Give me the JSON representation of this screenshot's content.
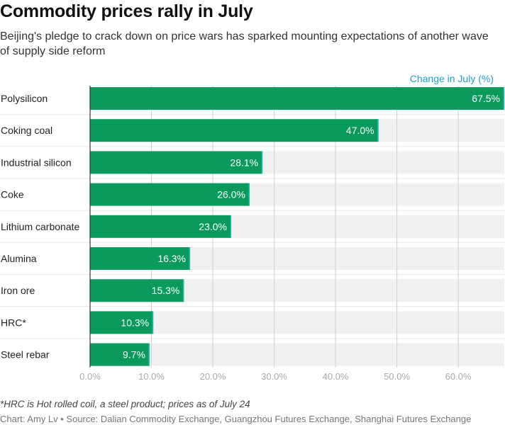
{
  "title": "Commodity prices rally in July",
  "subtitle": "Beijing's pledge to crack down on price wars has sparked mounting expectations of another wave of supply side reform",
  "footnote": "*HRC is Hot rolled coil, a steel product; prices as of July 24",
  "source": "Chart: Amy Lv • Source: Dalian Commodity Exchange, Guangzhou Futures Exchange, Shanghai Futures Exchange",
  "colors": {
    "bar": "#0a9a5c",
    "bar_edge": "#13c3b0",
    "track": "#f0f0f0",
    "grid": "#cfcfcf",
    "legend": "#1ba3c6",
    "tick": "#aaaaaa"
  },
  "chart_data": {
    "type": "bar",
    "orientation": "horizontal",
    "legend": [
      "Change in July (%)"
    ],
    "categories": [
      "Polysilicon",
      "Coking coal",
      "Industrial silicon",
      "Coke",
      "Lithium carbonate",
      "Alumina",
      "Iron ore",
      "HRC*",
      "Steel rebar"
    ],
    "values": [
      67.5,
      47.0,
      28.1,
      26.0,
      23.0,
      16.3,
      15.3,
      10.3,
      9.7
    ],
    "value_labels": [
      "67.5%",
      "47.0%",
      "28.1%",
      "26.0%",
      "23.0%",
      "16.3%",
      "15.3%",
      "10.3%",
      "9.7%"
    ],
    "xlim": [
      0,
      67.5
    ],
    "xticks": [
      0,
      10,
      20,
      30,
      40,
      50,
      60
    ],
    "xtick_labels": [
      "0.0%",
      "10.0%",
      "20.0%",
      "30.0%",
      "40.0%",
      "50.0%",
      "60.0%"
    ],
    "grid": true
  }
}
